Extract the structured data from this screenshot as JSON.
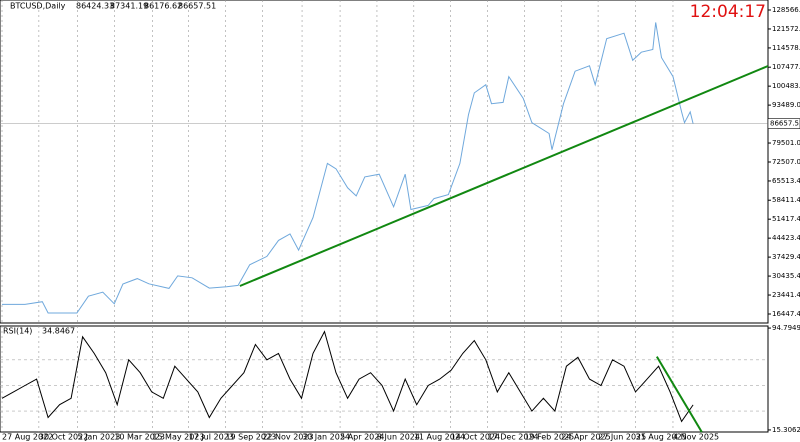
{
  "chart_data": [
    {
      "type": "line",
      "symbol": "BTCUSD,Daily",
      "ohlc": [
        86424.33,
        87341.19,
        86176.62,
        86657.51
      ],
      "clock": "12:04:17",
      "color": "#6fa8dc",
      "x": [
        0,
        40,
        70,
        80,
        120,
        130,
        150,
        175,
        195,
        210,
        235,
        255,
        290,
        305,
        330,
        360,
        390,
        410,
        430,
        460,
        480,
        500,
        515,
        540,
        565,
        580,
        600,
        615,
        630,
        655,
        680,
        700,
        710,
        740,
        750,
        775,
        795,
        810,
        820,
        840,
        850,
        870,
        880,
        905,
        920,
        950,
        955,
        975,
        995,
        1020,
        1030,
        1050,
        1080,
        1095,
        1110,
        1130,
        1135,
        1145,
        1165,
        1180,
        1185,
        1195,
        1200
      ],
      "values": [
        20000,
        20000,
        21000,
        16800,
        16800,
        16800,
        23000,
        24500,
        20200,
        27500,
        29500,
        27600,
        25900,
        30500,
        29800,
        26000,
        26500,
        27000,
        34600,
        37700,
        43600,
        46000,
        40000,
        52000,
        72000,
        70000,
        63000,
        60000,
        67000,
        68000,
        56000,
        68000,
        55000,
        56500,
        59000,
        60500,
        72000,
        90000,
        98000,
        101000,
        94000,
        94500,
        104000,
        96000,
        87000,
        83000,
        77000,
        94000,
        106000,
        108000,
        101000,
        118000,
        120000,
        110000,
        113000,
        114000,
        124000,
        111000,
        104000,
        91000,
        87000,
        91000,
        86657.51
      ],
      "xlim": [
        0,
        1330
      ],
      "ylim": [
        13128,
        132254
      ],
      "yticks": [
        {
          "value": 128566,
          "label": "128566.00"
        },
        {
          "value": 121572.6,
          "label": "121572.60"
        },
        {
          "value": 114578.2,
          "label": "114578.20"
        },
        {
          "value": 107477,
          "label": "107477.00"
        },
        {
          "value": 100483,
          "label": "100483.00"
        },
        {
          "value": 93489,
          "label": "93489.00"
        },
        {
          "value": 79501,
          "label": "79501.00"
        },
        {
          "value": 72507,
          "label": "72507.00"
        },
        {
          "value": 65513.4,
          "label": "65513.40"
        },
        {
          "value": 58411.4,
          "label": "58411.40"
        },
        {
          "value": 51417.4,
          "label": "51417.40"
        },
        {
          "value": 44423.4,
          "label": "44423.40"
        },
        {
          "value": 37429.4,
          "label": "37429.40"
        },
        {
          "value": 30435.4,
          "label": "30435.40"
        },
        {
          "value": 23441.4,
          "label": "23441.40"
        },
        {
          "value": 16447.4,
          "label": "16447.40"
        }
      ],
      "xticks": [
        {
          "value": 0,
          "label": "27 Aug 2022"
        },
        {
          "value": 64,
          "label": "30 Oct 2022"
        },
        {
          "value": 131,
          "label": "5 Jan 2023"
        },
        {
          "value": 195,
          "label": "10 Mar 2023"
        },
        {
          "value": 261,
          "label": "15 May 2023"
        },
        {
          "value": 324,
          "label": "17 Jul 2023"
        },
        {
          "value": 388,
          "label": "19 Sep 2023"
        },
        {
          "value": 452,
          "label": "22 Nov 2023"
        },
        {
          "value": 521,
          "label": "30 Jan 2024"
        },
        {
          "value": 587,
          "label": "5 Apr 2024"
        },
        {
          "value": 651,
          "label": "8 Jun 2024"
        },
        {
          "value": 715,
          "label": "11 Aug 2024"
        },
        {
          "value": 779,
          "label": "14 Oct 2024"
        },
        {
          "value": 843,
          "label": "17 Dec 2024"
        },
        {
          "value": 907,
          "label": "19 Feb 2025"
        },
        {
          "value": 971,
          "label": "24 Apr 2025"
        },
        {
          "value": 1035,
          "label": "27 Jun 2025"
        },
        {
          "value": 1100,
          "label": "31 Aug 2025"
        },
        {
          "value": 1165,
          "label": "4 Nov 2025"
        }
      ],
      "trendline": {
        "x": [
          413,
          1330
        ],
        "values": [
          26774,
          107912
        ],
        "color": "#118811"
      }
    },
    {
      "type": "line",
      "title": "RSI(14)",
      "last_value": 34.8467,
      "color": "#000000",
      "x": [
        0,
        20,
        40,
        60,
        80,
        100,
        120,
        140,
        160,
        180,
        200,
        220,
        240,
        260,
        280,
        300,
        320,
        340,
        360,
        380,
        400,
        420,
        440,
        460,
        480,
        500,
        520,
        540,
        560,
        580,
        600,
        620,
        640,
        660,
        680,
        700,
        720,
        740,
        760,
        780,
        800,
        820,
        840,
        860,
        880,
        900,
        920,
        940,
        960,
        980,
        1000,
        1020,
        1040,
        1060,
        1080,
        1100,
        1120,
        1140,
        1160,
        1180,
        1200
      ],
      "values": [
        40,
        45,
        50,
        55,
        25,
        35,
        40,
        88,
        75,
        60,
        35,
        70,
        60,
        45,
        40,
        65,
        55,
        45,
        25,
        40,
        50,
        60,
        82,
        70,
        75,
        55,
        40,
        75,
        92,
        60,
        40,
        55,
        60,
        50,
        30,
        55,
        35,
        50,
        55,
        62,
        75,
        85,
        70,
        45,
        60,
        45,
        30,
        40,
        30,
        65,
        72,
        55,
        50,
        70,
        65,
        45,
        55,
        65,
        45,
        22,
        34.8467
      ],
      "xlim": [
        0,
        1330
      ],
      "ylim": [
        13.7,
        96.4
      ],
      "yticks": [
        94.7949,
        15.3062
      ],
      "levels": [
        70,
        50,
        30
      ],
      "trendline": {
        "x": [
          1137,
          1215
        ],
        "values": [
          72.5,
          13.7
        ],
        "color": "#118811"
      }
    }
  ]
}
